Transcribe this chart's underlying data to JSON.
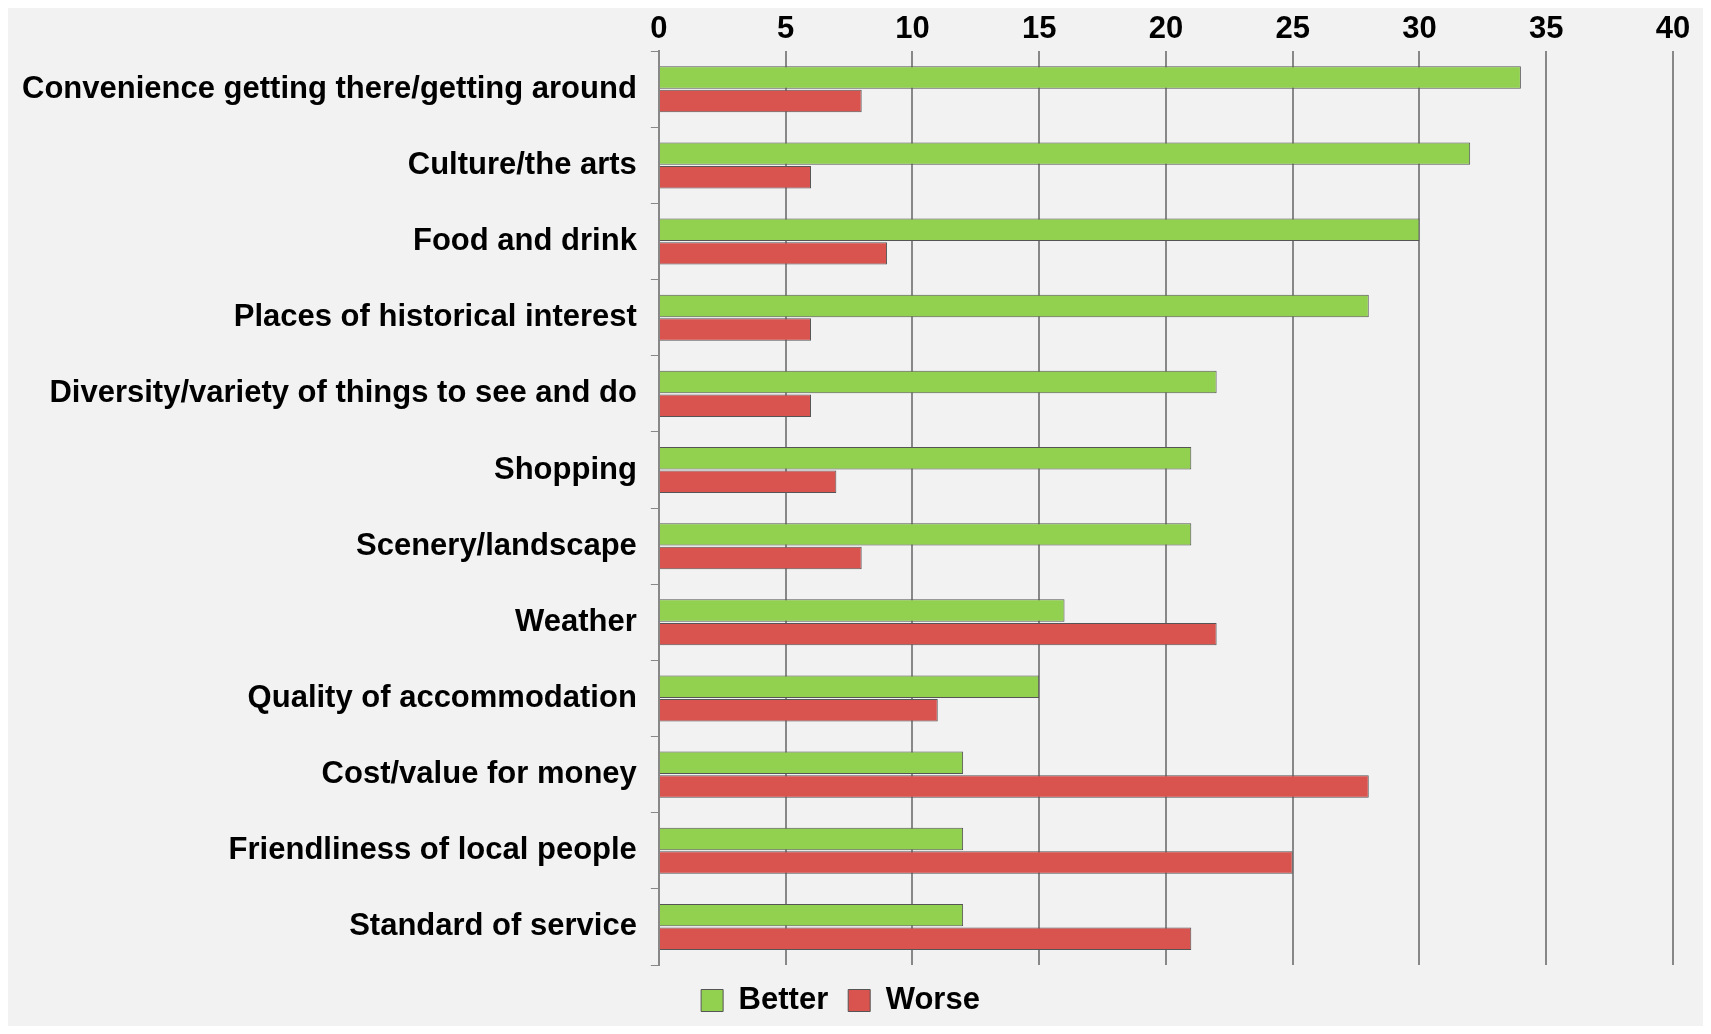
{
  "chart_data": {
    "type": "bar",
    "orientation": "horizontal",
    "categories": [
      "Convenience getting there/getting around",
      "Culture/the arts",
      "Food and drink",
      "Places of historical interest",
      "Diversity/variety of things to see and do",
      "Shopping",
      "Scenery/landscape",
      "Weather",
      "Quality of accommodation",
      "Cost/value for money",
      "Friendliness of local people",
      "Standard of service"
    ],
    "series": [
      {
        "name": "Better",
        "color": "#92d050",
        "values": [
          34,
          32,
          30,
          28,
          22,
          21,
          21,
          16,
          15,
          12,
          12,
          12
        ]
      },
      {
        "name": "Worse",
        "color": "#d9534f",
        "values": [
          8,
          6,
          9,
          6,
          6,
          7,
          8,
          22,
          11,
          28,
          25,
          21
        ]
      }
    ],
    "xlim": [
      0,
      40
    ],
    "xticks": [
      0,
      5,
      10,
      15,
      20,
      25,
      30,
      35,
      40
    ],
    "grid": "x",
    "legend": "bottom"
  }
}
